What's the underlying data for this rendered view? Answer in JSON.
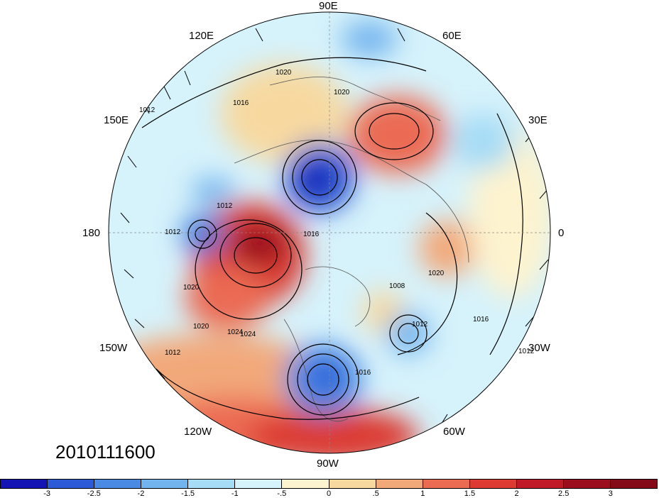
{
  "map": {
    "longitude_labels": [
      "90E",
      "60E",
      "30E",
      "0",
      "30W",
      "60W",
      "90W",
      "120W",
      "150W",
      "180",
      "150E",
      "120E"
    ],
    "date_stamp": "2010111600",
    "contour_labels": [
      "1020",
      "1020",
      "1016",
      "1012",
      "1012",
      "1012",
      "1016",
      "1020",
      "1024",
      "1020",
      "1016",
      "1008",
      "1012",
      "1016",
      "1020",
      "1012",
      "1024",
      "1012"
    ],
    "colorbar": {
      "tick_labels": [
        "-3",
        "-2.5",
        "-2",
        "-1.5",
        "-1",
        "-.5",
        "0",
        ".5",
        "1",
        "1.5",
        "2",
        "2.5",
        "3"
      ],
      "colors": [
        "#1414b4",
        "#2d5ad6",
        "#4a8ae4",
        "#72b4ee",
        "#a6dcf6",
        "#d6f2fb",
        "#fdf3cf",
        "#f7d9a0",
        "#f2a97a",
        "#eb6b52",
        "#dc3a33",
        "#c01a28",
        "#9a0e1e",
        "#850a18"
      ]
    }
  }
}
